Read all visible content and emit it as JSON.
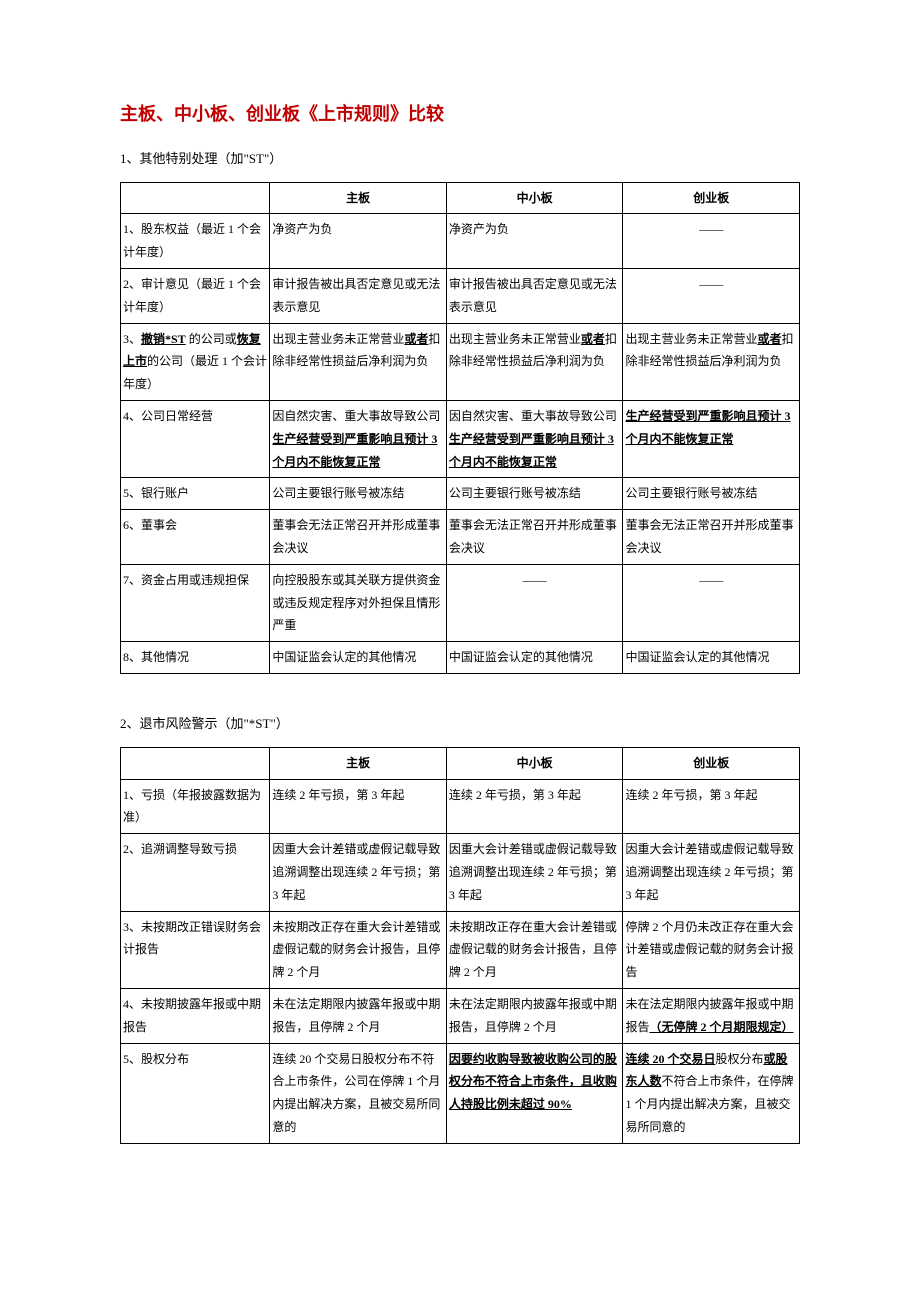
{
  "title": "主板、中小板、创业板《上市规则》比较",
  "section1": {
    "heading": "1、其他特别处理（加\"ST\"）",
    "columns": [
      "",
      "主板",
      "中小板",
      "创业板"
    ],
    "rows": [
      {
        "label": "1、股东权益（最近 1 个会计年度）",
        "c1": "净资产为负",
        "c2": "净资产为负",
        "c3": "——"
      },
      {
        "label": "2、审计意见（最近 1 个会计年度）",
        "c1": "审计报告被出具否定意见或无法表示意见",
        "c2": "审计报告被出具否定意见或无法表示意见",
        "c3": "——"
      },
      {
        "label_plain_pre": "3、",
        "label_bu": "撤销*ST",
        "label_plain_mid": " 的公司或",
        "label_bu2": "恢复上市",
        "label_plain_post": "的公司（最近 1 个会计年度）",
        "c1_pre": "出现主营业务未正常营业",
        "c1_bold": "或者",
        "c1_post": "扣除非经常性损益后净利润为负",
        "c2_pre": "出现主营业务未正常营业",
        "c2_bold": "或者",
        "c2_post": "扣除非经常性损益后净利润为负",
        "c3_pre": "出现主营业务未正常营业",
        "c3_bold": "或者",
        "c3_post": "扣除非经常性损益后净利润为负"
      },
      {
        "label": "4、公司日常经营",
        "c1_pre": "因自然灾害、重大事故导致公司",
        "c1_bu": "生产经营受到严重影响且预计 3 个月内不能恢复正常",
        "c2_pre": "因自然灾害、重大事故导致公司",
        "c2_bu": "生产经营受到严重影响且预计 3 个月内不能恢复正常",
        "c3_bu": "生产经营受到严重影响且预计 3 个月内不能恢复正常"
      },
      {
        "label": "5、银行账户",
        "c1": "公司主要银行账号被冻结",
        "c2": "公司主要银行账号被冻结",
        "c3": "公司主要银行账号被冻结"
      },
      {
        "label": "6、董事会",
        "c1": "董事会无法正常召开并形成董事会决议",
        "c2": "董事会无法正常召开并形成董事会决议",
        "c3": "董事会无法正常召开并形成董事会决议"
      },
      {
        "label": "7、资金占用或违规担保",
        "c1": "向控股股东或其关联方提供资金或违反规定程序对外担保且情形严重",
        "c2": "——",
        "c3": "——"
      },
      {
        "label": "8、其他情况",
        "c1": "中国证监会认定的其他情况",
        "c2": "中国证监会认定的其他情况",
        "c3": "中国证监会认定的其他情况"
      }
    ]
  },
  "section2": {
    "heading": "2、退市风险警示（加\"*ST\"）",
    "columns": [
      "",
      "主板",
      "中小板",
      "创业板"
    ],
    "rows": [
      {
        "label": "1、亏损（年报披露数据为准）",
        "c1": "连续 2 年亏损，第 3 年起",
        "c2": "连续 2 年亏损，第 3 年起",
        "c3": "连续 2 年亏损，第 3 年起"
      },
      {
        "label": "2、追溯调整导致亏损",
        "c1": "因重大会计差错或虚假记载导致追溯调整出现连续 2 年亏损；第 3 年起",
        "c2": "因重大会计差错或虚假记载导致追溯调整出现连续 2 年亏损；第 3 年起",
        "c3": "因重大会计差错或虚假记载导致追溯调整出现连续 2 年亏损；第 3 年起"
      },
      {
        "label": "3、未按期改正错误财务会计报告",
        "c1": "未按期改正存在重大会计差错或虚假记载的财务会计报告，且停牌 2 个月",
        "c2": "未按期改正存在重大会计差错或虚假记载的财务会计报告，且停牌 2 个月",
        "c3": "停牌 2 个月仍未改正存在重大会计差错或虚假记载的财务会计报告"
      },
      {
        "label": "4、未按期披露年报或中期报告",
        "c1": "未在法定期限内披露年报或中期报告，且停牌 2 个月",
        "c2": "未在法定期限内披露年报或中期报告，且停牌 2 个月",
        "c3_pre": "未在法定期限内披露年报或中期报告",
        "c3_bu": "（无停牌 2 个月期限规定）"
      },
      {
        "label": "5、股权分布",
        "c1": "连续 20 个交易日股权分布不符合上市条件，公司在停牌 1 个月内提出解决方案，且被交易所同意的",
        "c2_bu": "因要约收购导致被收购公司的股权分布不符合上市条件，且收购人持股比例未超过 90%",
        "c3_pre": "连续 20 个交易日",
        "c3_plain1": "股权分布",
        "c3_bold": "或股东人数",
        "c3_post": "不符合上市条件，在停牌 1 个月内提出解决方案，且被交易所同意的"
      }
    ]
  },
  "colors": {
    "title_color": "#c00000",
    "text_color": "#000000",
    "border_color": "#000000",
    "background": "#ffffff"
  }
}
